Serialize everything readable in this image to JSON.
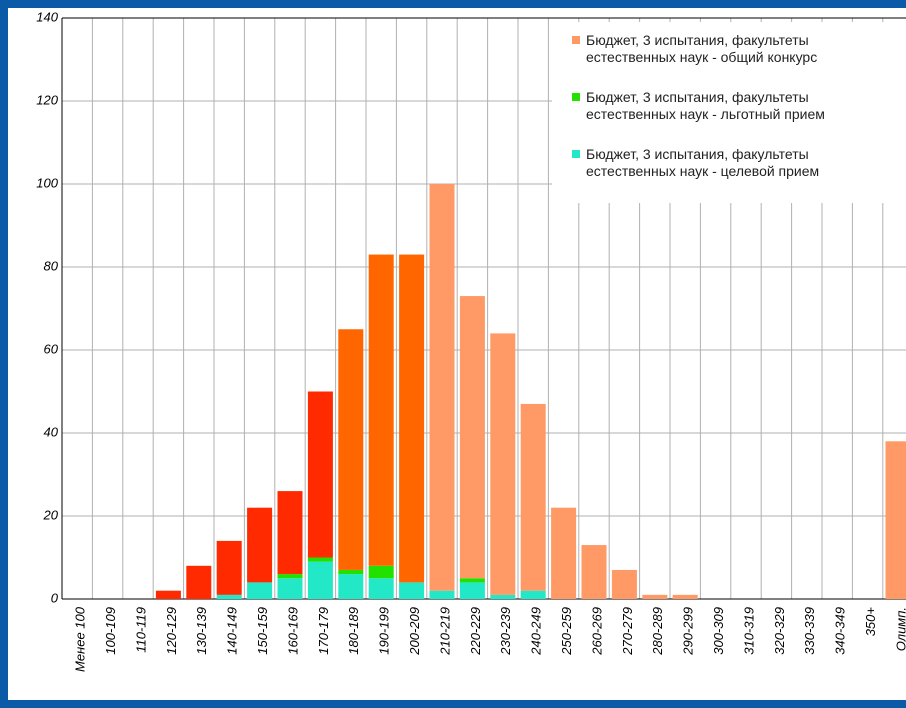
{
  "chart_data": {
    "type": "stacked_bar",
    "categories": [
      "Менее 100",
      "100-109",
      "110-119",
      "120-129",
      "130-139",
      "140-149",
      "150-159",
      "160-169",
      "170-179",
      "180-189",
      "190-199",
      "200-209",
      "210-219",
      "220-229",
      "230-239",
      "240-249",
      "250-259",
      "260-269",
      "270-279",
      "280-289",
      "290-299",
      "300-309",
      "310-319",
      "320-329",
      "330-339",
      "340-349",
      "350+",
      "Олимп."
    ],
    "series": [
      {
        "name": "Бюджет, 3 испытания, факультеты естественных наук - общий конкурс",
        "color": "#ff9966",
        "colors": [
          "#ff2a00",
          "#ff2a00",
          "#ff2a00",
          "#ff2a00",
          "#ff2a00",
          "#ff2a00",
          "#ff2a00",
          "#ff2a00",
          "#ff2a00",
          "#ff6600",
          "#ff6600",
          "#ff6600",
          "#ff9966",
          "#ff9966",
          "#ff9966",
          "#ff9966",
          "#ff9966",
          "#ff9966",
          "#ff9966",
          "#ff9966",
          "#ff9966",
          "#ff9966",
          "#ff9966",
          "#ff9966",
          "#ff9966",
          "#ff9966",
          "#ff9966",
          "#ff9966"
        ],
        "values": [
          0,
          0,
          0,
          2,
          8,
          13,
          18,
          20,
          40,
          58,
          75,
          79,
          98,
          68,
          63,
          45,
          22,
          13,
          7,
          1,
          1,
          0,
          0,
          0,
          0,
          0,
          0,
          38
        ]
      },
      {
        "name": "Бюджет, 3 испытания, факультеты естественных наук - льготный прием",
        "color": "#22e000",
        "values": [
          0,
          0,
          0,
          0,
          0,
          0,
          0,
          1,
          1,
          1,
          3,
          0,
          0,
          1,
          0,
          0,
          0,
          0,
          0,
          0,
          0,
          0,
          0,
          0,
          0,
          0,
          0,
          0
        ]
      },
      {
        "name": "Бюджет, 3 испытания, факультеты естественных наук - целевой прием",
        "color": "#22e8c8",
        "values": [
          0,
          0,
          0,
          0,
          0,
          1,
          4,
          5,
          9,
          6,
          5,
          4,
          2,
          4,
          1,
          2,
          0,
          0,
          0,
          0,
          0,
          0,
          0,
          0,
          0,
          0,
          0,
          0
        ]
      }
    ],
    "ylim": [
      0,
      140
    ],
    "yticks": [
      0,
      20,
      40,
      60,
      80,
      100,
      120,
      140
    ],
    "grid": true,
    "legend": "top-right"
  }
}
